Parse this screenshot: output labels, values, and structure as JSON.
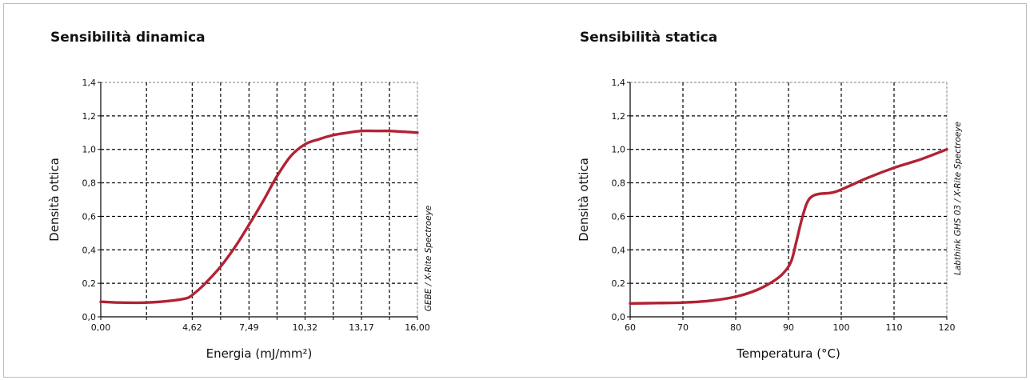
{
  "colors": {
    "curve": "#b22234",
    "grid": "#000000",
    "frame": "#bcbcbc"
  },
  "chart_data": [
    {
      "type": "line",
      "title": "Sensibilità dinamica",
      "xlabel": "Energia (mJ/mm²)",
      "ylabel": "Densità ottica",
      "credit": "GEBE / X-Rite Spectroeye",
      "x_tick_values": [
        0,
        2.31,
        4.62,
        6.055,
        7.49,
        8.905,
        10.32,
        11.745,
        13.17,
        14.585,
        16
      ],
      "x_tick_labels": [
        "0,00",
        "",
        "4,62",
        "",
        "7,49",
        "",
        "10,32",
        "",
        "13,17",
        "",
        "16,00"
      ],
      "y_tick_values": [
        0,
        0.2,
        0.4,
        0.6,
        0.8,
        1.0,
        1.2,
        1.4
      ],
      "y_tick_labels": [
        "0,0",
        "0,2",
        "0,4",
        "0,6",
        "0,8",
        "1,0",
        "1,2",
        "1,4"
      ],
      "xlim": [
        0,
        16
      ],
      "ylim": [
        0,
        1.4
      ],
      "grid": true,
      "series": [
        {
          "x": [
            0,
            1.0,
            2.31,
            3.5,
            4.3,
            4.62,
            5.2,
            6.055,
            6.8,
            7.49,
            8.2,
            8.905,
            9.6,
            10.32,
            11.0,
            11.745,
            12.5,
            13.17,
            13.9,
            14.585,
            15.3,
            16
          ],
          "y": [
            0.09,
            0.085,
            0.085,
            0.095,
            0.11,
            0.13,
            0.19,
            0.3,
            0.42,
            0.55,
            0.69,
            0.84,
            0.96,
            1.03,
            1.06,
            1.085,
            1.1,
            1.11,
            1.11,
            1.11,
            1.105,
            1.1
          ]
        }
      ]
    },
    {
      "type": "line",
      "title": "Sensibilità statica",
      "xlabel": "Temperatura (°C)",
      "ylabel": "Densità ottica",
      "credit": "Labthink GHS 03 / X-Rite Spectroeye",
      "x_tick_values": [
        60,
        70,
        80,
        90,
        100,
        110,
        120
      ],
      "x_tick_labels": [
        "60",
        "70",
        "80",
        "90",
        "100",
        "110",
        "120"
      ],
      "y_tick_values": [
        0,
        0.2,
        0.4,
        0.6,
        0.8,
        1.0,
        1.2,
        1.4
      ],
      "y_tick_labels": [
        "0,0",
        "0,2",
        "0,4",
        "0,6",
        "0,8",
        "1,0",
        "1,2",
        "1,4"
      ],
      "xlim": [
        60,
        120
      ],
      "ylim": [
        0,
        1.4
      ],
      "grid": true,
      "series": [
        {
          "x": [
            60,
            65,
            70,
            75,
            80,
            84,
            87,
            89,
            90.5,
            91.5,
            92.5,
            93.5,
            94.5,
            96,
            98,
            100,
            105,
            110,
            115,
            120
          ],
          "y": [
            0.08,
            0.082,
            0.085,
            0.095,
            0.12,
            0.16,
            0.21,
            0.26,
            0.33,
            0.45,
            0.58,
            0.68,
            0.72,
            0.735,
            0.74,
            0.76,
            0.83,
            0.89,
            0.94,
            1.0
          ]
        }
      ]
    }
  ]
}
